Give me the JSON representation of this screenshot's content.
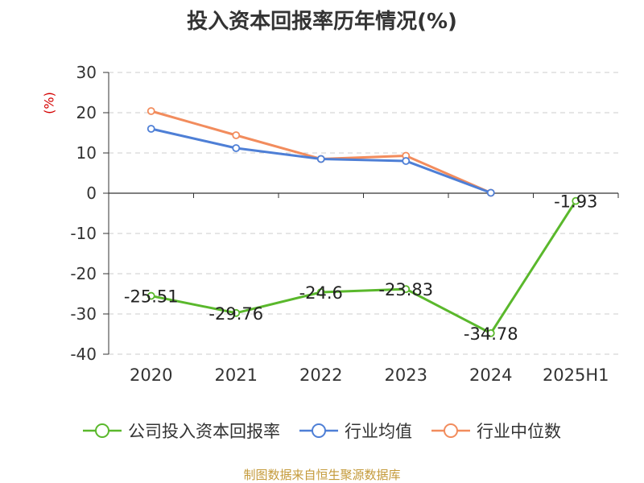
{
  "title": "投入资本回报率历年情况(%)",
  "source": "制图数据来自恒生聚源数据库",
  "chart_data": {
    "type": "line",
    "title": "投入资本回报率历年情况(%)",
    "ylabel": "(%)",
    "xlabel": "",
    "categories": [
      "2020",
      "2021",
      "2022",
      "2023",
      "2024",
      "2025H1"
    ],
    "ylim": [
      -40,
      30
    ],
    "yticks": [
      30,
      20,
      10,
      0,
      -10,
      -20,
      -30,
      -40
    ],
    "grid": true,
    "legend_position": "bottom",
    "series": [
      {
        "name": "公司投入资本回报率",
        "color": "#5ab82c",
        "values": [
          -25.51,
          -29.76,
          -24.6,
          -23.83,
          -34.78,
          -1.93
        ],
        "labels": [
          "-25.51",
          "-29.76",
          "-24.6",
          "-23.83",
          "-34.78",
          "-1.93"
        ]
      },
      {
        "name": "行业均值",
        "color": "#4e7fd6",
        "values": [
          16,
          11.2,
          8.5,
          8,
          0.1,
          null
        ]
      },
      {
        "name": "行业中位数",
        "color": "#f28c5d",
        "values": [
          20.4,
          14.4,
          8.5,
          9.3,
          0.1,
          null
        ]
      }
    ]
  }
}
